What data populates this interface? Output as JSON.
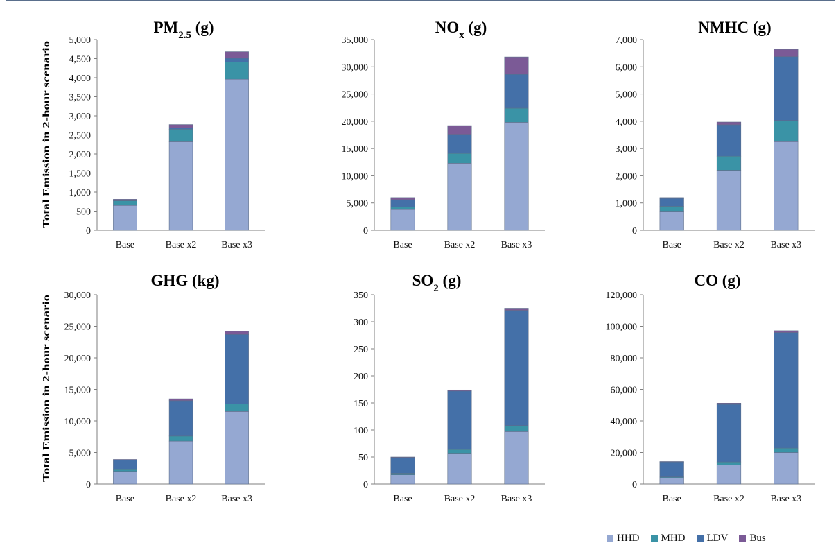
{
  "legend": [
    {
      "name": "HHD",
      "color": "#95a8d2"
    },
    {
      "name": "MHD",
      "color": "#3a93a6"
    },
    {
      "name": "LDV",
      "color": "#4470a8"
    },
    {
      "name": "Bus",
      "color": "#7b5a96"
    }
  ],
  "ylabel": "Total Emission in 2-hour scenario",
  "chart_data": [
    {
      "type": "bar",
      "stacked": true,
      "title": "PM",
      "title_sub": "2.5",
      "title_suffix": " (g)",
      "categories": [
        "Base",
        "Base x2",
        "Base x3"
      ],
      "ylim": [
        0,
        5000
      ],
      "ticks": [
        "0",
        "500",
        "1,000",
        "1,500",
        "2,000",
        "2,500",
        "3,000",
        "3,500",
        "4,000",
        "4,500",
        "5,000"
      ],
      "series": [
        {
          "name": "HHD",
          "values": [
            650,
            2320,
            3960
          ]
        },
        {
          "name": "MHD",
          "values": [
            120,
            330,
            450
          ]
        },
        {
          "name": "LDV",
          "values": [
            10,
            30,
            100
          ]
        },
        {
          "name": "Bus",
          "values": [
            30,
            90,
            170
          ]
        }
      ]
    },
    {
      "type": "bar",
      "stacked": true,
      "title": "NO",
      "title_sub": "x",
      "title_suffix": " (g)",
      "categories": [
        "Base",
        "Base x2",
        "Base x3"
      ],
      "ylim": [
        0,
        35000
      ],
      "ticks": [
        "0",
        "5,000",
        "10,000",
        "15,000",
        "20,000",
        "25,000",
        "30,000",
        "35,000"
      ],
      "series": [
        {
          "name": "HHD",
          "values": [
            3800,
            12300,
            19800
          ]
        },
        {
          "name": "MHD",
          "values": [
            500,
            1800,
            2600
          ]
        },
        {
          "name": "LDV",
          "values": [
            1300,
            3500,
            6200
          ]
        },
        {
          "name": "Bus",
          "values": [
            400,
            1600,
            3200
          ]
        }
      ]
    },
    {
      "type": "bar",
      "stacked": true,
      "title": "NMHC",
      "title_sub": "",
      "title_suffix": " (g)",
      "categories": [
        "Base",
        "Base x2",
        "Base x3"
      ],
      "ylim": [
        0,
        7000
      ],
      "ticks": [
        "0",
        "1,000",
        "2,000",
        "3,000",
        "4,000",
        "5,000",
        "6,000",
        "7,000"
      ],
      "series": [
        {
          "name": "HHD",
          "values": [
            700,
            2200,
            3250
          ]
        },
        {
          "name": "MHD",
          "values": [
            180,
            520,
            780
          ]
        },
        {
          "name": "LDV",
          "values": [
            290,
            1150,
            2340
          ]
        },
        {
          "name": "Bus",
          "values": [
            30,
            100,
            270
          ]
        }
      ]
    },
    {
      "type": "bar",
      "stacked": true,
      "title": "GHG",
      "title_sub": "",
      "title_suffix": " (kg)",
      "categories": [
        "Base",
        "Base x2",
        "Base x3"
      ],
      "ylim": [
        0,
        30000
      ],
      "ticks": [
        "0",
        "5,000",
        "10,000",
        "15,000",
        "20,000",
        "25,000",
        "30,000"
      ],
      "series": [
        {
          "name": "HHD",
          "values": [
            2000,
            6800,
            11500
          ]
        },
        {
          "name": "MHD",
          "values": [
            300,
            800,
            1200
          ]
        },
        {
          "name": "LDV",
          "values": [
            1500,
            5600,
            11000
          ]
        },
        {
          "name": "Bus",
          "values": [
            100,
            300,
            500
          ]
        }
      ]
    },
    {
      "type": "bar",
      "stacked": true,
      "title": "SO",
      "title_sub": "2",
      "title_suffix": " (g)",
      "categories": [
        "Base",
        "Base x2",
        "Base x3"
      ],
      "ylim": [
        0,
        350
      ],
      "ticks": [
        "0",
        "50",
        "100",
        "150",
        "200",
        "250",
        "300",
        "350"
      ],
      "series": [
        {
          "name": "HHD",
          "values": [
            17,
            57,
            97
          ]
        },
        {
          "name": "MHD",
          "values": [
            3,
            7,
            11
          ]
        },
        {
          "name": "LDV",
          "values": [
            29,
            108,
            213
          ]
        },
        {
          "name": "Bus",
          "values": [
            1,
            2,
            4
          ]
        }
      ]
    },
    {
      "type": "bar",
      "stacked": true,
      "title": "CO",
      "title_sub": "",
      "title_suffix": " (g)",
      "categories": [
        "Base",
        "Base x2",
        "Base x3"
      ],
      "ylim": [
        0,
        120000
      ],
      "ticks": [
        "0",
        "20,000",
        "40,000",
        "60,000",
        "80,000",
        "100,000",
        "120,000"
      ],
      "series": [
        {
          "name": "HHD",
          "values": [
            4000,
            12000,
            20000
          ]
        },
        {
          "name": "MHD",
          "values": [
            500,
            2000,
            2800
          ]
        },
        {
          "name": "LDV",
          "values": [
            9500,
            36500,
            73200
          ]
        },
        {
          "name": "Bus",
          "values": [
            300,
            800,
            1200
          ]
        }
      ]
    }
  ]
}
